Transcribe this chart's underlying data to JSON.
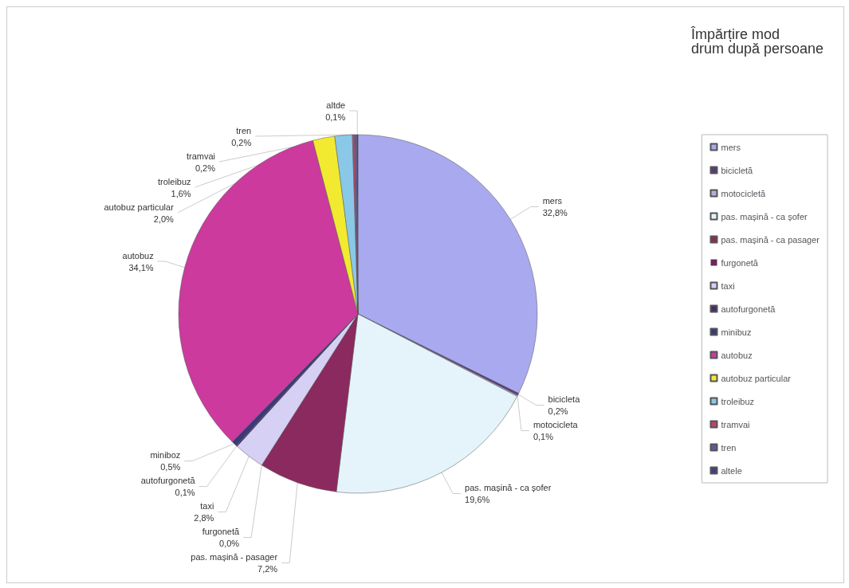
{
  "chart_data": {
    "type": "pie",
    "title": "Împărțire mod drum după persoane",
    "categories": [
      "mers",
      "bicicletă",
      "motocicletă",
      "pas. mașină - ca șofer",
      "pas. mașină - ca pasager",
      "furgonetă",
      "taxi",
      "autofurgonetă",
      "minibuz",
      "autobuz",
      "autobuz particular",
      "troleibuz",
      "tramvai",
      "tren",
      "altele"
    ],
    "values": [
      32.8,
      0.2,
      0.1,
      19.6,
      7.2,
      0.0,
      2.8,
      0.1,
      0.5,
      34.1,
      2.0,
      1.6,
      0.2,
      0.2,
      0.1
    ],
    "value_labels": [
      "mers\n32,8%",
      "bicicleta\n0,2%",
      "motocicleta\n0,1%",
      "pas. mașină - ca șofer\n19,6%",
      "pas. mașină - pasager\n7,2%",
      "furgonetă\n0,0%",
      "taxi\n2,8%",
      "autofurgonetă\n0,1%",
      "miniboz\n0,5%",
      "autobuz\n34,1%",
      "autobuz particular\n2,0%",
      "troleibuz\n1,6%",
      "tramvai\n0,2%",
      "tren\n0,2%",
      "altde\n0,1%"
    ],
    "colors": [
      "#a9a9ef",
      "#5a3a7a",
      "#b0b0d8",
      "#e4f4fa",
      "#8b2a5e",
      "#6a2a5a",
      "#d6d0f5",
      "#4a2a6a",
      "#3a3a7a",
      "#cc3a9e",
      "#f2ea30",
      "#8ac8e8",
      "#c04070",
      "#5a5aa0",
      "#404080"
    ],
    "legend": "right"
  }
}
